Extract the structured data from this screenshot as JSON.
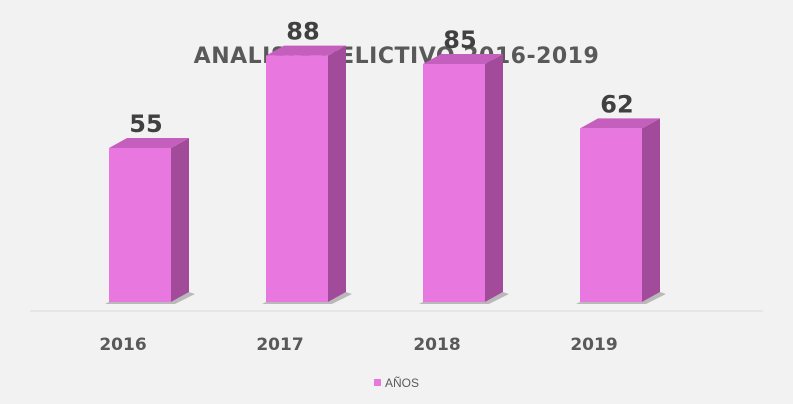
{
  "chart_data": {
    "type": "bar",
    "title": "ANALISIS DELICTIVO 2016-2019",
    "categories": [
      "2016",
      "2017",
      "2018",
      "2019"
    ],
    "series": [
      {
        "name": "AÑOS",
        "values": [
          55,
          88,
          85,
          62
        ]
      }
    ],
    "data_labels": [
      "55",
      "88",
      "85",
      "62"
    ],
    "ylim": [
      0,
      100
    ],
    "grid": false,
    "legend_position": "bottom",
    "style": "3d-column",
    "colors": {
      "bar_front": "#e878e0",
      "bar_side": "#a24b9a",
      "bar_top": "#c55fbd",
      "axis": "#d9d9d9",
      "text": "#595959",
      "label": "#404040",
      "background": "#f2f2f2"
    }
  }
}
